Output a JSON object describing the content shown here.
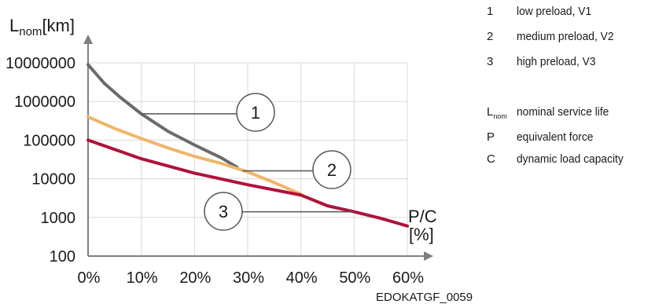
{
  "chart_data": {
    "type": "line",
    "title": "",
    "ylabel_main": "L",
    "ylabel_sub": "nom",
    "ylabel_unit": "[km]",
    "xlabel_top": "P/C",
    "xlabel_bottom": "[%]",
    "yscale": "log",
    "ylim": [
      100,
      10000000
    ],
    "xlim": [
      0,
      60
    ],
    "grid": true,
    "y_ticks": [
      {
        "value": 100,
        "label": "100"
      },
      {
        "value": 1000,
        "label": "1000"
      },
      {
        "value": 10000,
        "label": "10000"
      },
      {
        "value": 100000,
        "label": "100000"
      },
      {
        "value": 1000000,
        "label": "1000000"
      },
      {
        "value": 10000000,
        "label": "10000000"
      }
    ],
    "x_ticks": [
      {
        "value": 0,
        "label": "0%"
      },
      {
        "value": 10,
        "label": "10%"
      },
      {
        "value": 20,
        "label": "20%"
      },
      {
        "value": 30,
        "label": "30%"
      },
      {
        "value": 40,
        "label": "40%"
      },
      {
        "value": 50,
        "label": "50%"
      },
      {
        "value": 60,
        "label": "60%"
      }
    ],
    "series": [
      {
        "callout": "1",
        "color": "#6b6b6b",
        "x": [
          0,
          3,
          6,
          10,
          15,
          20,
          25,
          28
        ],
        "y": [
          9000000,
          3000000,
          1300000,
          480000,
          170000,
          75000,
          35000,
          20000
        ],
        "callout_anchor": [
          10,
          480000
        ]
      },
      {
        "callout": "2",
        "color": "#f0b56a",
        "x": [
          0,
          5,
          10,
          15,
          20,
          25,
          30,
          35,
          40
        ],
        "y": [
          400000,
          200000,
          110000,
          63000,
          38000,
          25000,
          15000,
          8000,
          4000
        ],
        "callout_anchor": [
          29,
          16000
        ]
      },
      {
        "callout": "3",
        "color": "#b0123a",
        "x": [
          0,
          10,
          20,
          30,
          40,
          45,
          50,
          55,
          60
        ],
        "y": [
          100000,
          33000,
          14000,
          7000,
          3800,
          2000,
          1400,
          950,
          600
        ],
        "callout_anchor": [
          50,
          1400
        ]
      }
    ]
  },
  "watermark": "EDOKATGF_0059",
  "legend": {
    "items": [
      {
        "key": "1",
        "text": "low preload, V1"
      },
      {
        "key": "2",
        "text": "medium preload, V2"
      },
      {
        "key": "3",
        "text": "high preload, V3"
      }
    ],
    "symbols": [
      {
        "key_main": "L",
        "key_sub": "nom",
        "text": "nominal service life"
      },
      {
        "key_main": "P",
        "key_sub": "",
        "text": "equivalent force"
      },
      {
        "key_main": "C",
        "key_sub": "",
        "text": "dynamic load capacity"
      }
    ]
  }
}
